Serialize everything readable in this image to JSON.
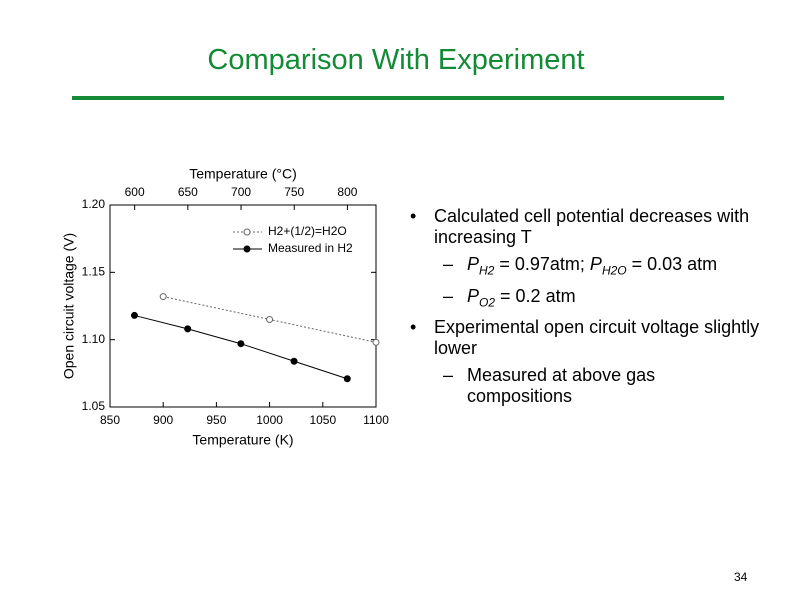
{
  "slide_title": "Comparison With Experiment",
  "chart_data": {
    "type": "line",
    "xlabel": "Temperature (K)",
    "ylabel": "Open circuit voltage (V)",
    "x2label": "Temperature (°C)",
    "xlim": [
      850,
      1100
    ],
    "xticks": [
      850,
      900,
      950,
      1000,
      1050,
      1100
    ],
    "x2lim": [
      576.85,
      826.85
    ],
    "x2ticks": [
      600,
      650,
      700,
      750,
      800
    ],
    "ylim": [
      1.05,
      1.2
    ],
    "yticks": [
      1.05,
      {
        "value": 1.1,
        "label": "1.10"
      },
      1.15,
      {
        "value": 1.2,
        "label": "1.20"
      }
    ],
    "legend": "upper right",
    "series": [
      {
        "name": "H2+(1/2)=H2O",
        "color": "#666666",
        "marker": "open",
        "dashed": true,
        "x": [
          900,
          1000,
          1100
        ],
        "values": [
          1.132,
          1.115,
          1.098
        ]
      },
      {
        "name": "Measured in H2",
        "color": "#000000",
        "marker": "filled",
        "dashed": false,
        "x": [
          873,
          923,
          973,
          1023,
          1073
        ],
        "values": [
          1.118,
          1.108,
          1.097,
          1.084,
          1.071
        ]
      }
    ]
  },
  "bullets": [
    {
      "text": "Calculated cell potential decreases with increasing T",
      "sub": [
        [
          "P",
          "H2",
          " = 0.97atm; ",
          "P",
          "H2O",
          " = 0.03 atm"
        ],
        [
          "P",
          "O2",
          " = 0.2 atm"
        ]
      ]
    },
    {
      "text": "Experimental open circuit voltage slightly lower",
      "sub": [
        [
          "Measured at above gas compositions"
        ]
      ]
    }
  ],
  "page_number": "34"
}
